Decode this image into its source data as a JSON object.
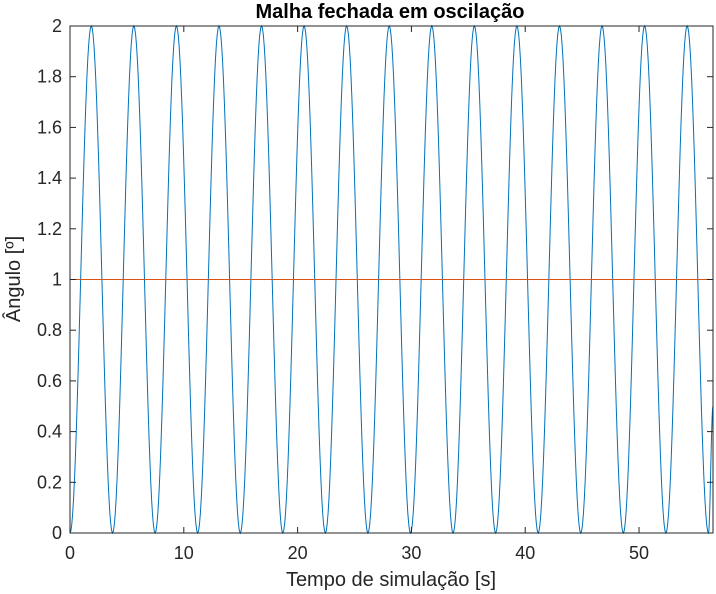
{
  "chart_data": {
    "type": "line",
    "title": "Malha fechada em oscilação",
    "xlabel": "Tempo de simulação [s]",
    "ylabel": "Ângulo [º]",
    "xlim": [
      0,
      56.5
    ],
    "ylim": [
      0,
      2
    ],
    "xticks": [
      "0",
      "10",
      "20",
      "30",
      "40",
      "50"
    ],
    "yticks": [
      "0",
      "0.2",
      "0.4",
      "0.6",
      "0.8",
      "1",
      "1.2",
      "1.4",
      "1.6",
      "1.8",
      "2"
    ],
    "grid": false,
    "series": [
      {
        "color": "#0072bd",
        "description": "closed-loop response oscillating between 0 and 2 (period ≈ 3.74 s)",
        "x": [
          0,
          1.87,
          3.74,
          5.61,
          7.48,
          9.35,
          11.22,
          13.09,
          14.96,
          16.83,
          18.7,
          20.57,
          22.44,
          24.31,
          26.18,
          28.05,
          29.92,
          31.79,
          33.66,
          35.53,
          37.4,
          39.27,
          41.14,
          43.01,
          44.88,
          46.75,
          48.62,
          50.49,
          52.36,
          54.23,
          56.1,
          56.5
        ],
        "y": [
          0,
          2,
          0,
          2,
          0,
          2,
          0,
          2,
          0,
          2,
          0,
          2,
          0,
          2,
          0,
          2,
          0,
          2,
          0,
          2,
          0,
          2,
          0,
          2,
          0,
          2,
          0,
          2,
          0,
          2,
          0,
          0.5
        ]
      },
      {
        "color": "#d95319",
        "description": "reference (setpoint) at 1",
        "x": [
          0,
          56.5
        ],
        "y": [
          1,
          1
        ]
      }
    ]
  }
}
